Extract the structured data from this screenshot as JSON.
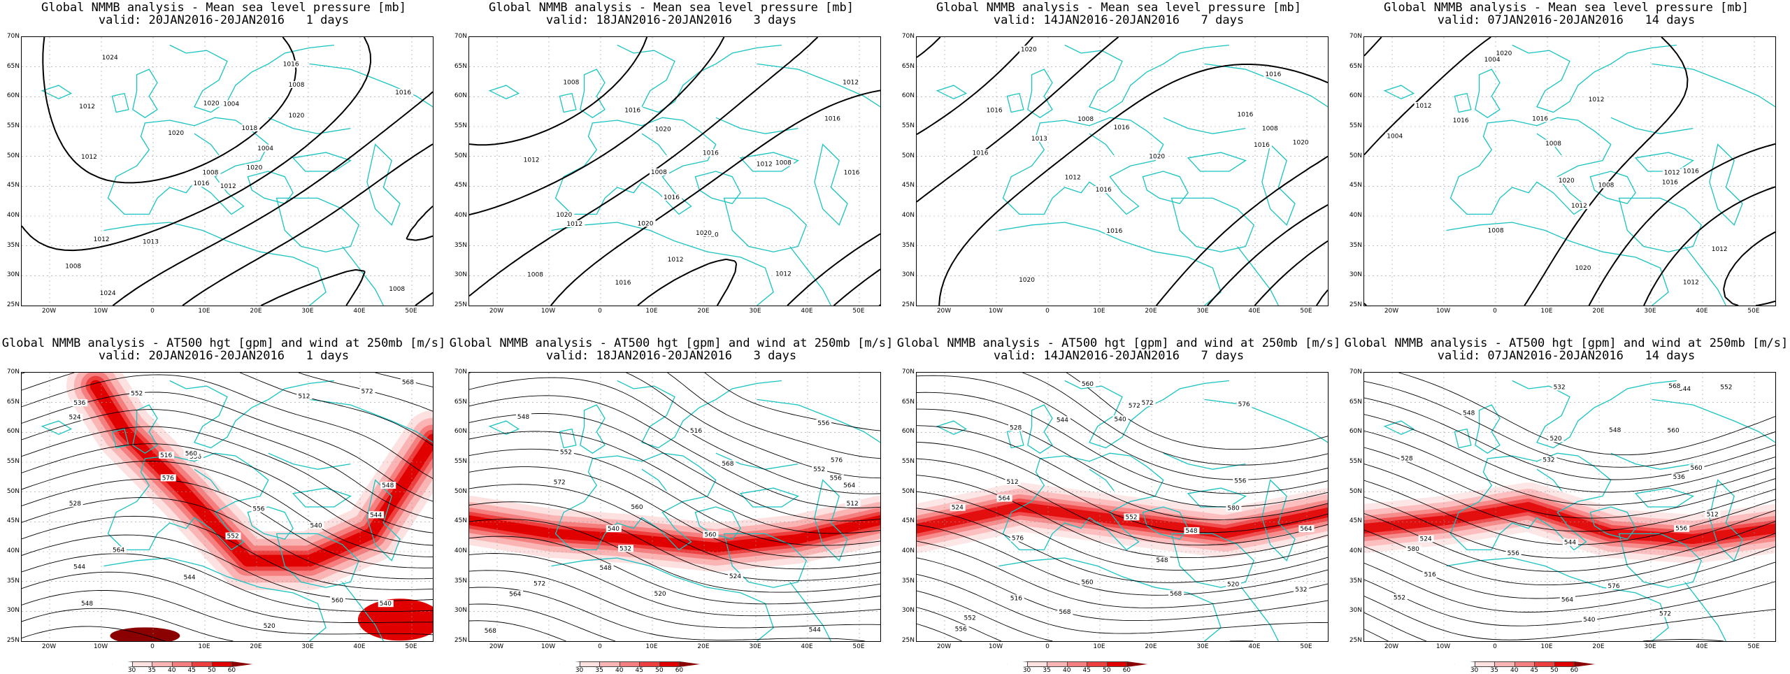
{
  "rows": [
    {
      "title_line1": "Global NMMB analysis - Mean sea level pressure [mb]",
      "panels": [
        {
          "valid": "valid: 20JAN2016-20JAN2016   1 days"
        },
        {
          "valid": "valid: 18JAN2016-20JAN2016   3 days"
        },
        {
          "valid": "valid: 14JAN2016-20JAN2016   7 days"
        },
        {
          "valid": "valid: 07JAN2016-20JAN2016   14 days"
        }
      ]
    },
    {
      "title_line1": "Global NMMB analysis - AT500 hgt [gpm] and wind at 250mb [m/s]",
      "panels": [
        {
          "valid": "valid: 20JAN2016-20JAN2016   1 days"
        },
        {
          "valid": "valid: 18JAN2016-20JAN2016   3 days"
        },
        {
          "valid": "valid: 14JAN2016-20JAN2016   7 days"
        },
        {
          "valid": "valid: 07JAN2016-20JAN2016   14 days"
        }
      ]
    }
  ],
  "lat_labels": [
    "70N",
    "65N",
    "60N",
    "55N",
    "50N",
    "45N",
    "40N",
    "35N",
    "30N",
    "25N"
  ],
  "lon_labels": [
    "20W",
    "10W",
    "0",
    "10E",
    "20E",
    "30E",
    "40E",
    "50E"
  ],
  "mslp_contour_labels": [
    [
      "1012",
      "1012",
      "1008",
      "1008",
      "1004",
      "1013",
      "1016",
      "1004",
      "1008",
      "1020",
      "1024",
      "1008",
      "1012",
      "1016",
      "1016",
      "1020",
      "1024",
      "1020",
      "1018",
      "1012",
      "1020"
    ],
    [
      "1012",
      "1012",
      "1008",
      "1016",
      "1012",
      "1016",
      "1008",
      "1020",
      "1020",
      "1016",
      "1012",
      "1008",
      "1016",
      "1016",
      "1008",
      "1012",
      "1020",
      "1020",
      "1012",
      "1016",
      "1020"
    ],
    [
      "1020",
      "1016",
      "1016",
      "1008",
      "1008",
      "1016",
      "1020",
      "1016",
      "1016",
      "1012",
      "1013",
      "1016",
      "1020",
      "1016",
      "1016",
      "1020"
    ],
    [
      "1016",
      "1012",
      "1008",
      "1004",
      "1008",
      "1012",
      "1004",
      "1008",
      "1012",
      "1016",
      "1020",
      "1012",
      "1012",
      "1016",
      "1012",
      "1020",
      "1016",
      "1020"
    ]
  ],
  "z500_contour_labels": [
    [
      "540",
      "544",
      "548",
      "552",
      "556",
      "560",
      "544",
      "512",
      "516",
      "520",
      "524",
      "528",
      "536",
      "540",
      "544",
      "548",
      "552",
      "556",
      "560",
      "564",
      "568",
      "572",
      "576"
    ],
    [
      "512",
      "516",
      "520",
      "524",
      "548",
      "552",
      "556",
      "560",
      "564",
      "568",
      "572",
      "532",
      "540",
      "544",
      "548",
      "552",
      "556",
      "560",
      "564",
      "568",
      "572",
      "576"
    ],
    [
      "512",
      "516",
      "520",
      "524",
      "528",
      "532",
      "548",
      "552",
      "556",
      "560",
      "564",
      "568",
      "572",
      "576",
      "580",
      "540",
      "544",
      "548",
      "552",
      "556",
      "560",
      "564",
      "568",
      "572",
      "576"
    ],
    [
      "532",
      "512",
      "516",
      "520",
      "524",
      "528",
      "532",
      "536",
      "540",
      "544",
      "548",
      "552",
      "556",
      "560",
      "564",
      "568",
      "572",
      "576",
      "580",
      "544",
      "548",
      "552",
      "556",
      "560"
    ]
  ],
  "wind_colorbar": {
    "ticks": [
      "30",
      "35",
      "40",
      "45",
      "50",
      "60"
    ],
    "colors": [
      "#ffffff",
      "#fde0e0",
      "#fbb4b4",
      "#f57f7f",
      "#ee3f3f",
      "#e00000",
      "#8b0000"
    ]
  },
  "colors": {
    "contour": "#000000",
    "coast": "#19c3c3",
    "grid": "#999999"
  }
}
